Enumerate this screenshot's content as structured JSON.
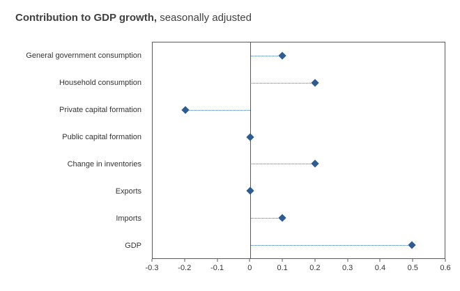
{
  "chart_data": {
    "type": "scatter",
    "title_bold": "Contribution to GDP growth,",
    "title_rest": " seasonally adjusted",
    "categories": [
      "General government consumption",
      "Household consumption",
      "Private capital formation",
      "Public capital formation",
      "Change in inventories",
      "Exports",
      "Imports",
      "GDP"
    ],
    "values": [
      0.1,
      0.2,
      -0.2,
      0,
      0.2,
      0,
      0.1,
      0.5
    ],
    "xlabel": "",
    "ylabel": "",
    "xlim": [
      -0.3,
      0.6
    ],
    "xticks": [
      -0.3,
      -0.2,
      -0.1,
      0,
      0.1,
      0.2,
      0.3,
      0.4,
      0.5,
      0.6
    ],
    "xtick_labels": [
      "-0.3",
      "-0.2",
      "-0.1",
      "0",
      "0.1",
      "0.2",
      "0.3",
      "0.4",
      "0.5",
      "0.6"
    ],
    "legend": "none",
    "grid": "off",
    "marker_style": "diamond",
    "leader_style": "dotted",
    "colors": {
      "marker": "#2e5c8f",
      "leader": "#3f6bb0",
      "axis": "#595959",
      "text": "#333333"
    }
  }
}
